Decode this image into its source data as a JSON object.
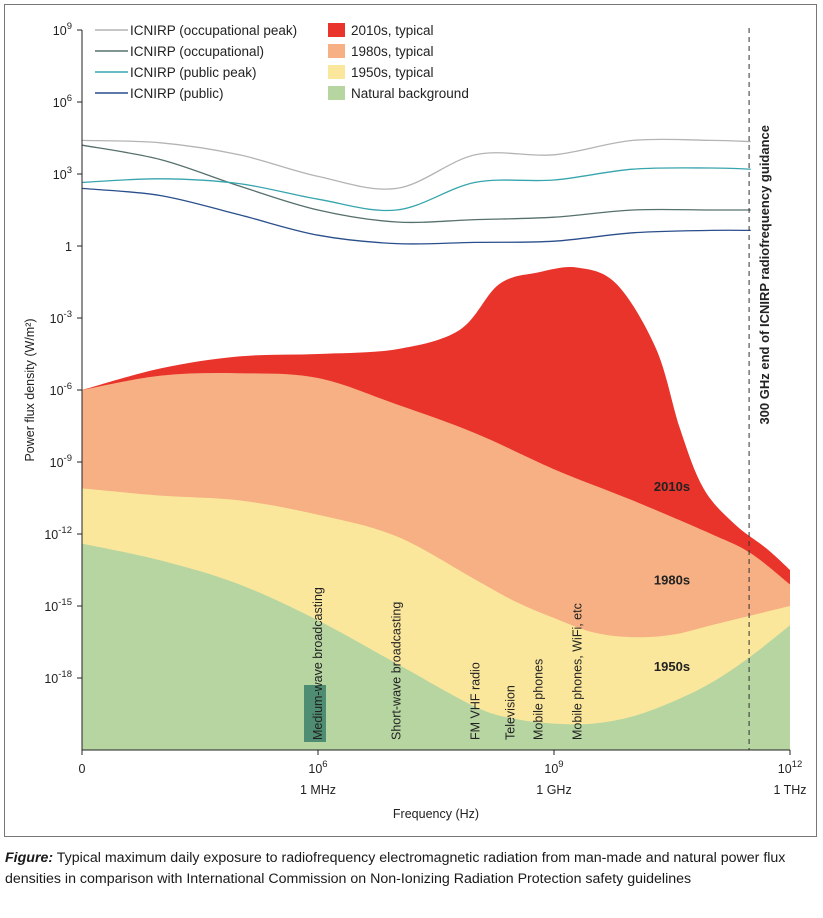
{
  "chart_data": {
    "type": "area",
    "title": "",
    "xlabel": "Frequency (Hz)",
    "ylabel": "Power flux density (W/m²)",
    "x_scale": "log10",
    "y_scale": "log10",
    "xlim_exp": [
      3,
      12
    ],
    "ylim_exp": [
      -21,
      9
    ],
    "x_ticks": [
      {
        "exp": 3,
        "label": "0",
        "sublabel": ""
      },
      {
        "exp": 6,
        "label": "10",
        "sup": "6",
        "sublabel": "1 MHz"
      },
      {
        "exp": 9,
        "label": "10",
        "sup": "9",
        "sublabel": "1 GHz"
      },
      {
        "exp": 12,
        "label": "10",
        "sup": "12",
        "sublabel": "1 THz"
      }
    ],
    "y_ticks": [
      {
        "exp": 9,
        "label": "10",
        "sup": "9"
      },
      {
        "exp": 6,
        "label": "10",
        "sup": "6"
      },
      {
        "exp": 3,
        "label": "10",
        "sup": "3"
      },
      {
        "exp": 0,
        "label": "1",
        "sup": ""
      },
      {
        "exp": -3,
        "label": "10",
        "sup": "-3"
      },
      {
        "exp": -6,
        "label": "10",
        "sup": "-6"
      },
      {
        "exp": -9,
        "label": "10",
        "sup": "-9"
      },
      {
        "exp": -12,
        "label": "10",
        "sup": "-12"
      },
      {
        "exp": -15,
        "label": "10",
        "sup": "-15"
      },
      {
        "exp": -18,
        "label": "10",
        "sup": "-18"
      }
    ],
    "areas": [
      {
        "name": "2010s, typical",
        "label": "2010s",
        "color": "#e8342b",
        "points": [
          [
            3,
            -6
          ],
          [
            4,
            -5.1
          ],
          [
            5,
            -4.6
          ],
          [
            6,
            -4.5
          ],
          [
            7,
            -4.3
          ],
          [
            7.8,
            -3.5
          ],
          [
            8.3,
            -1.6
          ],
          [
            8.8,
            -1.1
          ],
          [
            9.3,
            -0.9
          ],
          [
            9.8,
            -1.6
          ],
          [
            10.3,
            -4.3
          ],
          [
            10.6,
            -7.6
          ],
          [
            10.9,
            -10.1
          ],
          [
            11.3,
            -11.6
          ],
          [
            11.7,
            -12.6
          ],
          [
            12,
            -13.5
          ]
        ]
      },
      {
        "name": "1980s, typical",
        "label": "1980s",
        "color": "#f6b083",
        "points": [
          [
            3,
            -6
          ],
          [
            4,
            -5.4
          ],
          [
            5,
            -5.3
          ],
          [
            6,
            -5.5
          ],
          [
            7,
            -6.6
          ],
          [
            8,
            -7.8
          ],
          [
            9,
            -9.3
          ],
          [
            10,
            -10.6
          ],
          [
            11,
            -12
          ],
          [
            11.5,
            -12.8
          ],
          [
            12,
            -14.1
          ]
        ]
      },
      {
        "name": "1950s, typical",
        "label": "1950s",
        "color": "#fbe79c",
        "points": [
          [
            3,
            -10.1
          ],
          [
            4,
            -10.4
          ],
          [
            5,
            -10.6
          ],
          [
            6,
            -11.2
          ],
          [
            7,
            -12.1
          ],
          [
            8,
            -13.9
          ],
          [
            8.5,
            -14.8
          ],
          [
            9,
            -15.5
          ],
          [
            9.5,
            -16.1
          ],
          [
            10,
            -16.3
          ],
          [
            10.5,
            -16.2
          ],
          [
            11,
            -15.8
          ],
          [
            11.5,
            -15.4
          ],
          [
            12,
            -15
          ]
        ]
      },
      {
        "name": "Natural background",
        "label": "",
        "color": "#b6d5a1",
        "points": [
          [
            3,
            -12.4
          ],
          [
            4,
            -13.1
          ],
          [
            5,
            -14.1
          ],
          [
            6,
            -15.6
          ],
          [
            7,
            -17.4
          ],
          [
            8,
            -19.2
          ],
          [
            8.5,
            -19.7
          ],
          [
            9,
            -19.9
          ],
          [
            9.5,
            -19.9
          ],
          [
            10,
            -19.6
          ],
          [
            10.5,
            -19
          ],
          [
            11,
            -18.2
          ],
          [
            11.5,
            -17.1
          ],
          [
            12,
            -15.8
          ]
        ]
      }
    ],
    "series": [
      {
        "name": "ICNIRP (occupational peak)",
        "color": "#b4b4b4",
        "points": [
          [
            3,
            4.4
          ],
          [
            4,
            4.3
          ],
          [
            5,
            3.8
          ],
          [
            6,
            2.9
          ],
          [
            7,
            2.4
          ],
          [
            8,
            3.8
          ],
          [
            9,
            3.8
          ],
          [
            10,
            4.4
          ],
          [
            11,
            4.4
          ],
          [
            11.5,
            4.35
          ]
        ]
      },
      {
        "name": "ICNIRP (occupational)",
        "color": "#56706e",
        "points": [
          [
            3,
            4.2
          ],
          [
            4,
            3.6
          ],
          [
            5,
            2.5
          ],
          [
            6,
            1.5
          ],
          [
            7,
            1
          ],
          [
            8,
            1.1
          ],
          [
            9,
            1.2
          ],
          [
            10,
            1.5
          ],
          [
            11,
            1.5
          ],
          [
            11.5,
            1.5
          ]
        ]
      },
      {
        "name": "ICNIRP (public peak)",
        "color": "#37a5ad",
        "points": [
          [
            3,
            2.65
          ],
          [
            4,
            2.8
          ],
          [
            5,
            2.6
          ],
          [
            6,
            1.95
          ],
          [
            7,
            1.5
          ],
          [
            8,
            2.65
          ],
          [
            9,
            2.75
          ],
          [
            10,
            3.2
          ],
          [
            11,
            3.25
          ],
          [
            11.5,
            3.2
          ]
        ]
      },
      {
        "name": "ICNIRP (public)",
        "color": "#2a4f8c",
        "points": [
          [
            3,
            2.4
          ],
          [
            4,
            2.1
          ],
          [
            5,
            1.3
          ],
          [
            6,
            0.45
          ],
          [
            7,
            0.1
          ],
          [
            8,
            0.15
          ],
          [
            9,
            0.2
          ],
          [
            10,
            0.55
          ],
          [
            11,
            0.65
          ],
          [
            11.5,
            0.65
          ]
        ]
      }
    ],
    "guidance_line": {
      "x_exp": 11.48,
      "label": "300 GHz end of ICNIRP radiofrequency guidance"
    },
    "region_labels": [
      {
        "text": "2010s",
        "x_exp": 10.5,
        "y_exp": -10.2
      },
      {
        "text": "1980s",
        "x_exp": 10.5,
        "y_exp": -14.1
      },
      {
        "text": "1950s",
        "x_exp": 10.5,
        "y_exp": -17.7
      }
    ],
    "annotations": [
      {
        "text": "Medium-wave broadcasting",
        "x_exp": 6,
        "highlight": true
      },
      {
        "text": "Short-wave broadcasting",
        "x_exp": 7
      },
      {
        "text": "FM VHF radio",
        "x_exp": 8
      },
      {
        "text": "Television",
        "x_exp": 8.45
      },
      {
        "text": "Mobile phones",
        "x_exp": 8.8
      },
      {
        "text": "Mobile phones, WiFi, etc",
        "x_exp": 9.3
      }
    ]
  },
  "caption": {
    "lead": "Figure:",
    "text": " Typical maximum daily exposure to radiofrequency electromagnetic radiation from man-made and natural power flux densities in comparison with International Commission on Non-Ionizing Radiation Protection safety guidelines"
  }
}
